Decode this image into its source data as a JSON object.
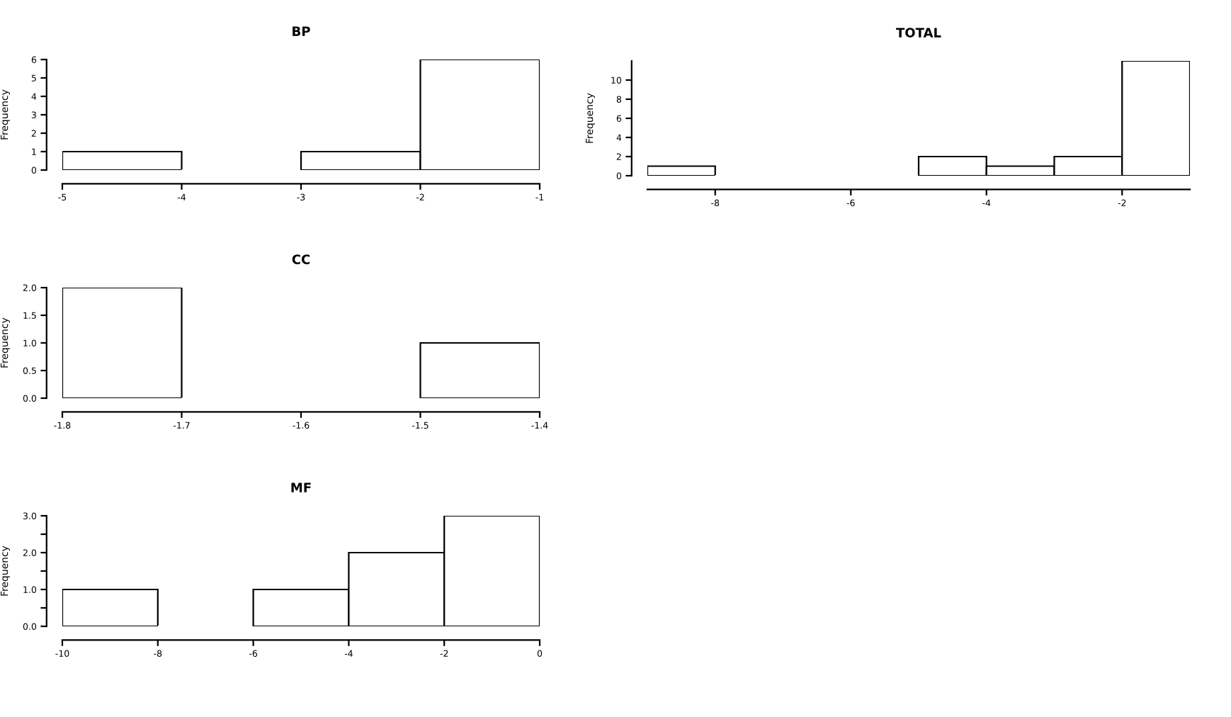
{
  "chart_data": [
    {
      "type": "histogram",
      "title": "BP",
      "ylabel": "Frequency",
      "color": "#ffffff",
      "bins": [
        -5,
        -4,
        -3,
        -2,
        -1
      ],
      "values": [
        1,
        0,
        1,
        6
      ],
      "xlim": [
        -5,
        -1
      ],
      "xticks": [
        -5,
        -4,
        -3,
        -2,
        -1
      ],
      "ylim": [
        0,
        6
      ],
      "yticks": [
        0,
        1,
        2,
        3,
        4,
        5,
        6
      ]
    },
    {
      "type": "histogram",
      "title": "TOTAL",
      "ylabel": "Frequency",
      "color": "#ffffff",
      "bins": [
        -9,
        -8,
        -7,
        -6,
        -5,
        -4,
        -3,
        -2,
        -1
      ],
      "values": [
        1,
        0,
        0,
        0,
        2,
        1,
        2,
        12
      ],
      "xlim": [
        -9,
        -1
      ],
      "xticks": [
        -8,
        -6,
        -4,
        -2
      ],
      "ylim": [
        0,
        12
      ],
      "yticks": [
        0,
        2,
        4,
        6,
        8,
        10
      ]
    },
    {
      "type": "histogram",
      "title": "CC",
      "ylabel": "Frequency",
      "color": "#ffffff",
      "bins": [
        -1.8,
        -1.7,
        -1.6,
        -1.5,
        -1.4
      ],
      "values": [
        2,
        0,
        0,
        1
      ],
      "xlim": [
        -1.8,
        -1.4
      ],
      "xticks": [
        -1.8,
        -1.7,
        -1.6,
        -1.5,
        -1.4
      ],
      "ylim": [
        0,
        2
      ],
      "yticks": [
        {
          "value": 0,
          "label": "0.0"
        },
        {
          "value": 0.5,
          "label": "0.5"
        },
        {
          "value": 1,
          "label": "1.0"
        },
        {
          "value": 1.5,
          "label": "1.5"
        },
        {
          "value": 2,
          "label": "2.0"
        }
      ]
    },
    {
      "type": "histogram",
      "title": "MF",
      "ylabel": "Frequency",
      "color": "#ffffff",
      "bins": [
        -10,
        -8,
        -6,
        -4,
        -2,
        0
      ],
      "values": [
        1,
        0,
        1,
        2,
        3
      ],
      "xlim": [
        -10,
        0
      ],
      "xticks": [
        -10,
        -8,
        -6,
        -4,
        -2,
        0
      ],
      "ylim": [
        0,
        3
      ],
      "yticks": [
        {
          "value": 0,
          "label": "0.0"
        },
        {
          "value": 0.5,
          "label": null
        },
        {
          "value": 1,
          "label": "1.0"
        },
        {
          "value": 1.5,
          "label": null
        },
        {
          "value": 2,
          "label": "2.0"
        },
        {
          "value": 2.5,
          "label": null
        },
        {
          "value": 3,
          "label": "3.0"
        }
      ]
    }
  ]
}
